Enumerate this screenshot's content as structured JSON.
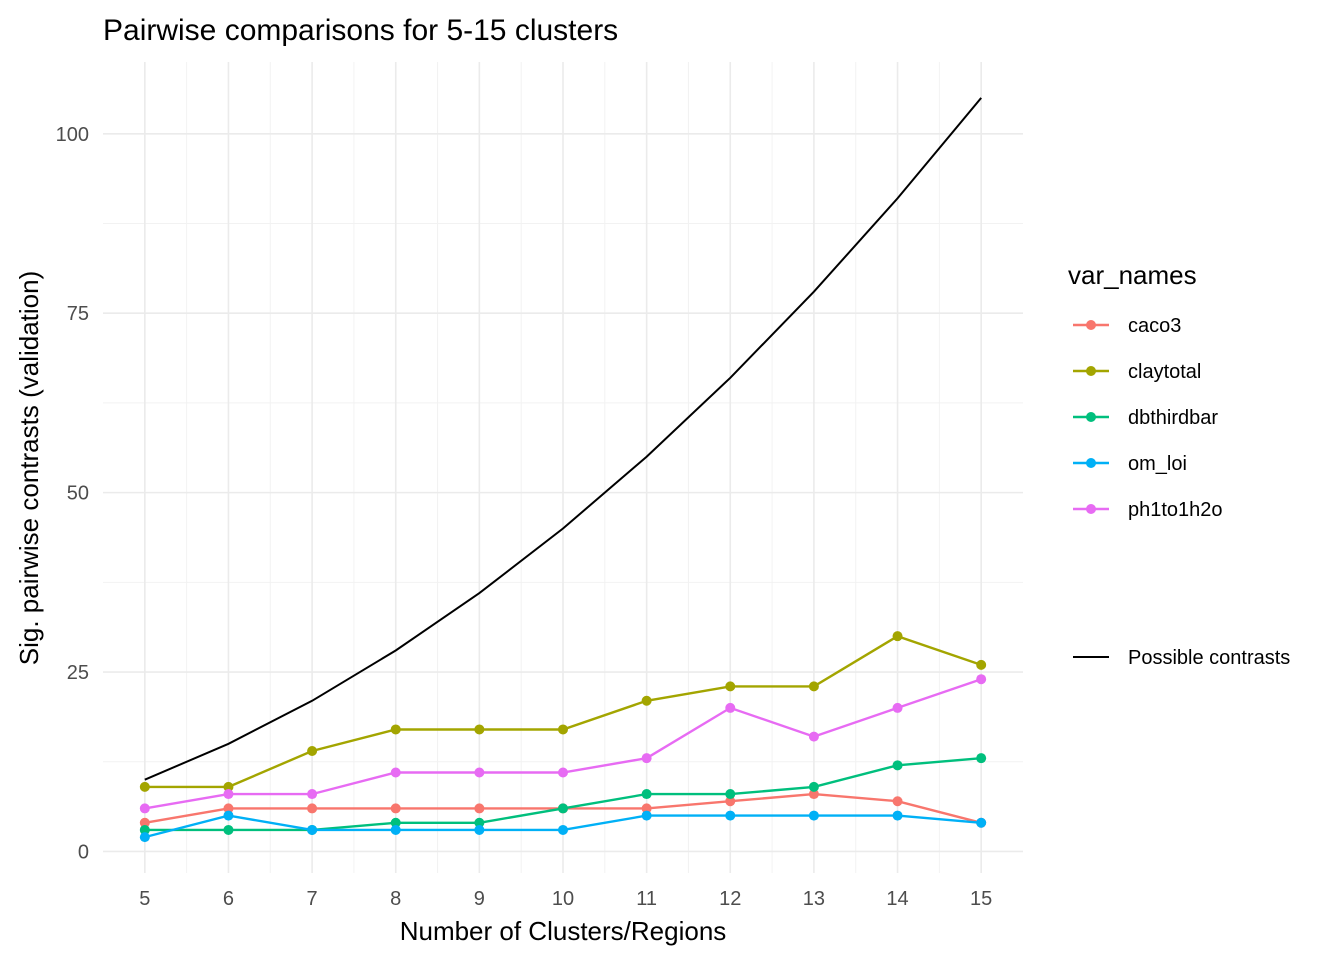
{
  "chart_data": {
    "type": "line",
    "title": "Pairwise comparisons for 5-15 clusters",
    "xlabel": "Number of Clusters/Regions",
    "ylabel": "Sig. pairwise contrasts (validation)",
    "x": [
      5,
      6,
      7,
      8,
      9,
      10,
      11,
      12,
      13,
      14,
      15
    ],
    "xlim": [
      4.5,
      15.5
    ],
    "ylim": [
      -3,
      110
    ],
    "x_ticks": [
      "5",
      "6",
      "7",
      "8",
      "9",
      "10",
      "11",
      "12",
      "13",
      "14",
      "15"
    ],
    "y_ticks": [
      0,
      25,
      50,
      75,
      100
    ],
    "y_tick_labels": [
      "0",
      "25",
      "50",
      "75",
      "100"
    ],
    "grid": true,
    "legend_placement": "right",
    "legend_title": "var_names",
    "series": [
      {
        "name": "caco3",
        "color": "#F8766D",
        "markers": true,
        "values": [
          4,
          6,
          6,
          6,
          6,
          6,
          6,
          7,
          8,
          7,
          4
        ]
      },
      {
        "name": "claytotal",
        "color": "#A3A500",
        "markers": true,
        "values": [
          9,
          9,
          14,
          17,
          17,
          17,
          21,
          23,
          23,
          30,
          26
        ]
      },
      {
        "name": "dbthirdbar",
        "color": "#00BF7D",
        "markers": true,
        "values": [
          3,
          3,
          3,
          4,
          4,
          6,
          8,
          8,
          9,
          12,
          13
        ]
      },
      {
        "name": "om_loi",
        "color": "#00B0F6",
        "markers": true,
        "values": [
          2,
          5,
          3,
          3,
          3,
          3,
          5,
          5,
          5,
          5,
          4
        ]
      },
      {
        "name": "ph1to1h2o",
        "color": "#E76BF3",
        "markers": true,
        "values": [
          6,
          8,
          8,
          11,
          11,
          11,
          13,
          20,
          16,
          20,
          24
        ]
      }
    ],
    "reference_line": {
      "name": "Possible contrasts",
      "color": "#000000",
      "markers": false,
      "values": [
        10,
        15,
        21,
        28,
        36,
        45,
        55,
        66,
        78,
        91,
        105
      ]
    }
  }
}
